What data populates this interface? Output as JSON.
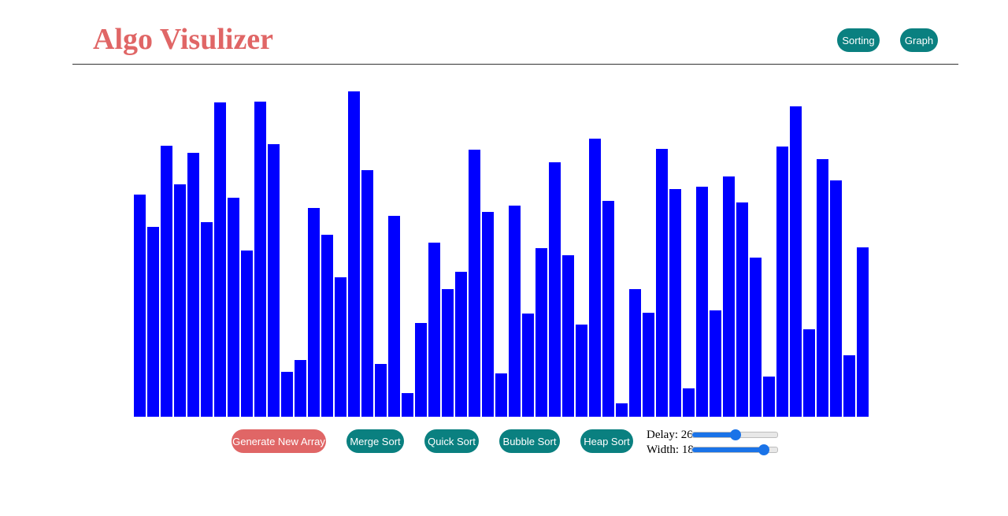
{
  "header": {
    "title": "Algo Visulizer",
    "nav": [
      {
        "label": "Sorting"
      },
      {
        "label": "Graph"
      }
    ]
  },
  "controls": {
    "generate_label": "Generate New Array",
    "merge_label": "Merge Sort",
    "quick_label": "Quick Sort",
    "bubble_label": "Bubble Sort",
    "heap_label": "Heap Sort",
    "delay": {
      "label": "Delay:",
      "value": 26,
      "fraction": 0.51
    },
    "width": {
      "label": "Width:",
      "value": 18,
      "fraction": 0.84
    }
  },
  "colors": {
    "brand": "#e06666",
    "accent_teal": "#0a8080",
    "button_red": "#e06666",
    "bar": "#0000ff",
    "slider": "#1a73e8"
  },
  "chart_data": {
    "type": "bar",
    "values": [
      282,
      241,
      344,
      295,
      335,
      247,
      399,
      278,
      211,
      400,
      346,
      57,
      72,
      265,
      231,
      177,
      413,
      313,
      67,
      255,
      30,
      119,
      221,
      162,
      184,
      339,
      260,
      55,
      268,
      131,
      214,
      323,
      205,
      117,
      353,
      274,
      17,
      162,
      132,
      340,
      289,
      36,
      292,
      135,
      305,
      272,
      202,
      51,
      343,
      394,
      111,
      327,
      300,
      78,
      215
    ],
    "ylim": [
      0,
      413
    ]
  }
}
